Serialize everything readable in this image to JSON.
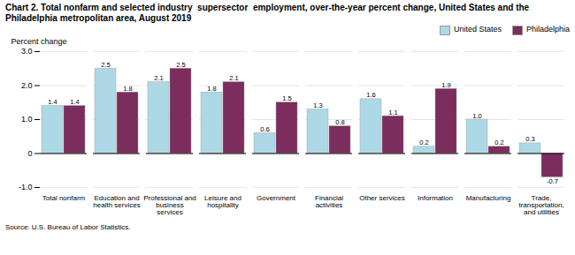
{
  "chart_data": {
    "type": "bar",
    "title": "Chart 2. Total nonfarm and selected industry  supersector  employment, over-the-year percent change, United States and the\nPhiladelphia metropolitan area, August 2019",
    "ylabel": "Percent change",
    "source": "Source: U.S. Bureau of Labor Statistics.",
    "categories": [
      "Total nonfarm",
      "Education and\nhealth services",
      "Professional and\nbusiness\nservices",
      "Leisure and\nhospitality",
      "Government",
      "Financial\nactivities",
      "Other services",
      "Information",
      "Manufacturing",
      "Trade,\ntransportation,\nand utilities"
    ],
    "series": [
      {
        "name": "United States",
        "color": "#ADD8E6",
        "values": [
          1.4,
          2.5,
          2.1,
          1.8,
          0.6,
          1.3,
          1.6,
          0.2,
          1.0,
          0.3
        ],
        "value_labels": [
          "1.4",
          "2.5",
          "2.1",
          "1.8",
          "0.6",
          "1.3",
          "1.6",
          "0.2",
          "1.0",
          "0.3"
        ]
      },
      {
        "name": "Philadelphia",
        "color": "#7B2D5E",
        "values": [
          1.4,
          1.8,
          2.5,
          2.1,
          1.5,
          0.8,
          1.1,
          1.9,
          0.2,
          -0.7
        ],
        "value_labels": [
          "1.4",
          "1.8",
          "2.5",
          "2.1",
          "1.5",
          "0.8",
          "1.1",
          "1.9",
          "0.2",
          "-0.7"
        ]
      }
    ],
    "ylim": [
      -1.0,
      3.0
    ],
    "yticks": [
      {
        "value": -1.0,
        "label": "-1.0"
      },
      0,
      {
        "value": 1.0,
        "label": "1.0"
      },
      {
        "value": 2.0,
        "label": "2.0"
      },
      {
        "value": 3.0,
        "label": "3.0"
      }
    ],
    "grid": true,
    "legend": "upper right",
    "data_labels": true
  }
}
